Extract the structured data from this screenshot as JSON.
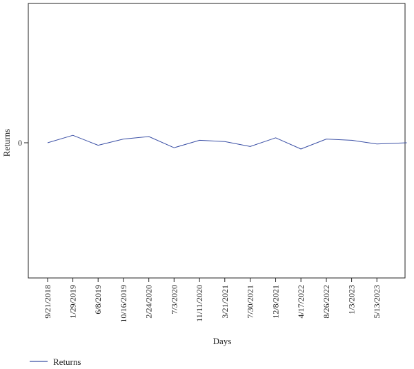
{
  "chart_data": {
    "type": "line",
    "title": "",
    "xlabel": "Days",
    "ylabel": "Returns",
    "x_ticks": [
      "9/21/2018",
      "1/29/2019",
      "6/8/2019",
      "10/16/2019",
      "2/24/2020",
      "7/3/2020",
      "11/11/2020",
      "3/21/2021",
      "7/30/2021",
      "12/8/2021",
      "4/17/2022",
      "8/26/2022",
      "1/3/2023",
      "5/13/2023"
    ],
    "x_range": [
      "9/21/2018",
      "10/14/2023"
    ],
    "y_ticks": [
      "0"
    ],
    "ylim": [
      -1.0,
      1.0
    ],
    "grid": false,
    "legend_position": "bottom-left",
    "colors": {
      "series": "#3a4fa5"
    },
    "series": [
      {
        "name": "Returns",
        "x": [
          "9/21/2018",
          "1/29/2019",
          "6/8/2019",
          "10/16/2019",
          "2/24/2020",
          "7/3/2020",
          "11/11/2020",
          "3/21/2021",
          "7/30/2021",
          "12/8/2021",
          "4/17/2022",
          "8/26/2022",
          "1/3/2023",
          "5/13/2023",
          "10/14/2023"
        ],
        "values": [
          0.0,
          0.06,
          -0.02,
          0.03,
          0.05,
          -0.04,
          0.02,
          0.01,
          -0.03,
          0.04,
          -0.05,
          0.03,
          0.02,
          -0.01,
          0.0
        ]
      }
    ]
  },
  "legend": {
    "label": "Returns"
  }
}
